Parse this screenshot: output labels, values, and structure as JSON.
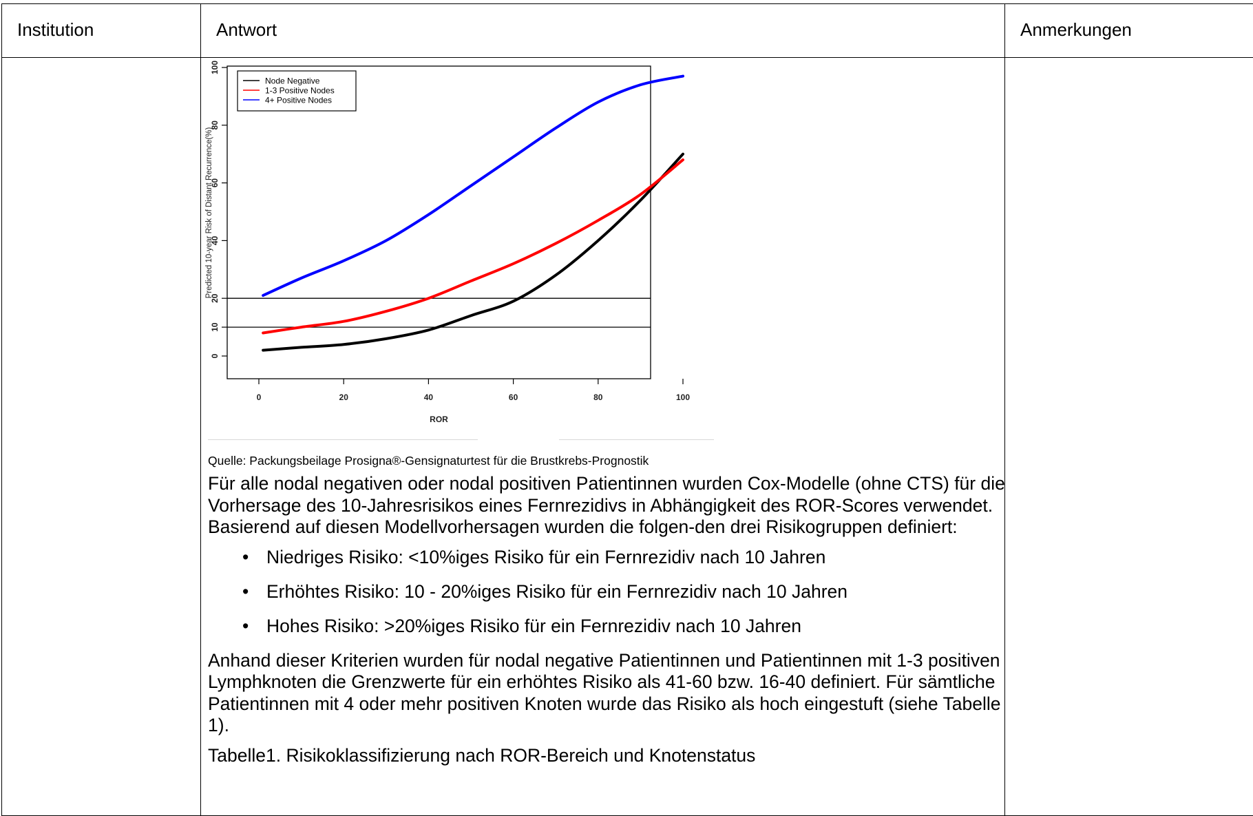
{
  "table": {
    "headers": [
      "Institution",
      "Antwort",
      "Anmerkungen"
    ]
  },
  "figure": {
    "source_caption": "Quelle: Packungsbeilage Prosigna®-Gensignaturtest für die Brustkrebs-Prognostik"
  },
  "chart_data": {
    "type": "line",
    "title": "",
    "xlabel": "ROR",
    "ylabel": "Predicted 10-year Risk of Distant Recurrence(%)",
    "xlim": [
      0,
      100
    ],
    "ylim": [
      0,
      100
    ],
    "x_ticks": [
      0,
      20,
      40,
      60,
      80,
      100
    ],
    "y_ticks": [
      0,
      10,
      20,
      40,
      60,
      80,
      100
    ],
    "reference_lines_y": [
      10,
      20
    ],
    "legend_position": "top-left",
    "grid": false,
    "x": [
      1,
      10,
      20,
      30,
      40,
      50,
      60,
      70,
      80,
      90,
      100
    ],
    "series": [
      {
        "name": "Node Negative",
        "color": "#000000",
        "values": [
          2,
          3,
          4,
          6,
          9,
          14,
          19,
          28,
          40,
          54,
          70
        ]
      },
      {
        "name": "1-3 Positive Nodes",
        "color": "#ff0000",
        "values": [
          8,
          10,
          12,
          15.5,
          20,
          26,
          32,
          39,
          47,
          56,
          68
        ]
      },
      {
        "name": "4+ Positive Nodes",
        "color": "#0000ff",
        "values": [
          21,
          27,
          33,
          40,
          49,
          59,
          69,
          79,
          88,
          94,
          97
        ]
      }
    ]
  },
  "text": {
    "intro": "Für alle nodal negativen oder nodal positiven Patientinnen wurden Cox-Modelle (ohne CTS) für die Vorhersage des 10-Jahresrisikos eines Fernrezidivs in Abhängigkeit des ROR-Scores verwendet. Basierend auf diesen Modellvorhersagen wurden die folgen-den drei Risikogruppen definiert:",
    "bullets": [
      "Niedriges Risiko: <10%iges Risiko für ein Fernrezidiv nach 10 Jahren",
      "Erhöhtes Risiko: 10 - 20%iges Risiko für ein Fernrezidiv nach 10 Jahren",
      "Hohes Risiko: >20%iges Risiko für ein Fernrezidiv nach 10 Jahren"
    ],
    "after": "Anhand dieser Kriterien wurden für nodal negative Patientinnen und Patientinnen mit 1-3 positiven Lymphknoten die Grenzwerte für ein erhöhtes Risiko als 41-60 bzw. 16-40 definiert. Für sämtliche Patientinnen mit 4 oder mehr positiven Knoten wurde das Risiko als hoch eingestuft (siehe Tabelle 1).",
    "table_caption": "Tabelle1. Risikoklassifizierung nach ROR-Bereich und Knotenstatus"
  }
}
